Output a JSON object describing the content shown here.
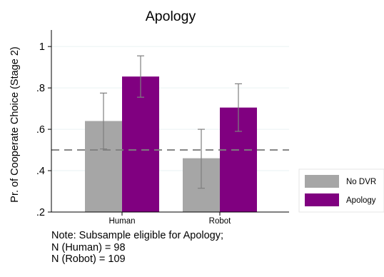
{
  "chart_data": {
    "type": "bar",
    "title": "Apology",
    "ylabel": "Pr. of Cooperate Choice (Stage 2)",
    "xlabel": "",
    "categories": [
      "Human",
      "Robot"
    ],
    "ylim": [
      0.2,
      1.08
    ],
    "yticks": [
      0.2,
      0.4,
      0.6,
      0.8,
      1.0
    ],
    "ytick_labels": [
      ".2",
      ".4",
      ".6",
      ".8",
      "1"
    ],
    "reference_line": {
      "y": 0.5,
      "style": "dashed"
    },
    "grid": true,
    "legend_position": "right",
    "series": [
      {
        "name": "No DVR",
        "color": "#a6a6a6",
        "values": [
          0.64,
          0.46
        ],
        "ci_low": [
          0.505,
          0.315
        ],
        "ci_high": [
          0.775,
          0.6
        ]
      },
      {
        "name": "Apology",
        "color": "#800080",
        "values": [
          0.855,
          0.705
        ],
        "ci_low": [
          0.755,
          0.59
        ],
        "ci_high": [
          0.955,
          0.82
        ]
      }
    ],
    "errorbar_color": "#7f7f7f"
  },
  "note": {
    "lines": [
      "Note: Subsample eligible for Apology;",
      "N (Human) = 98",
      "N (Robot) = 109"
    ]
  }
}
